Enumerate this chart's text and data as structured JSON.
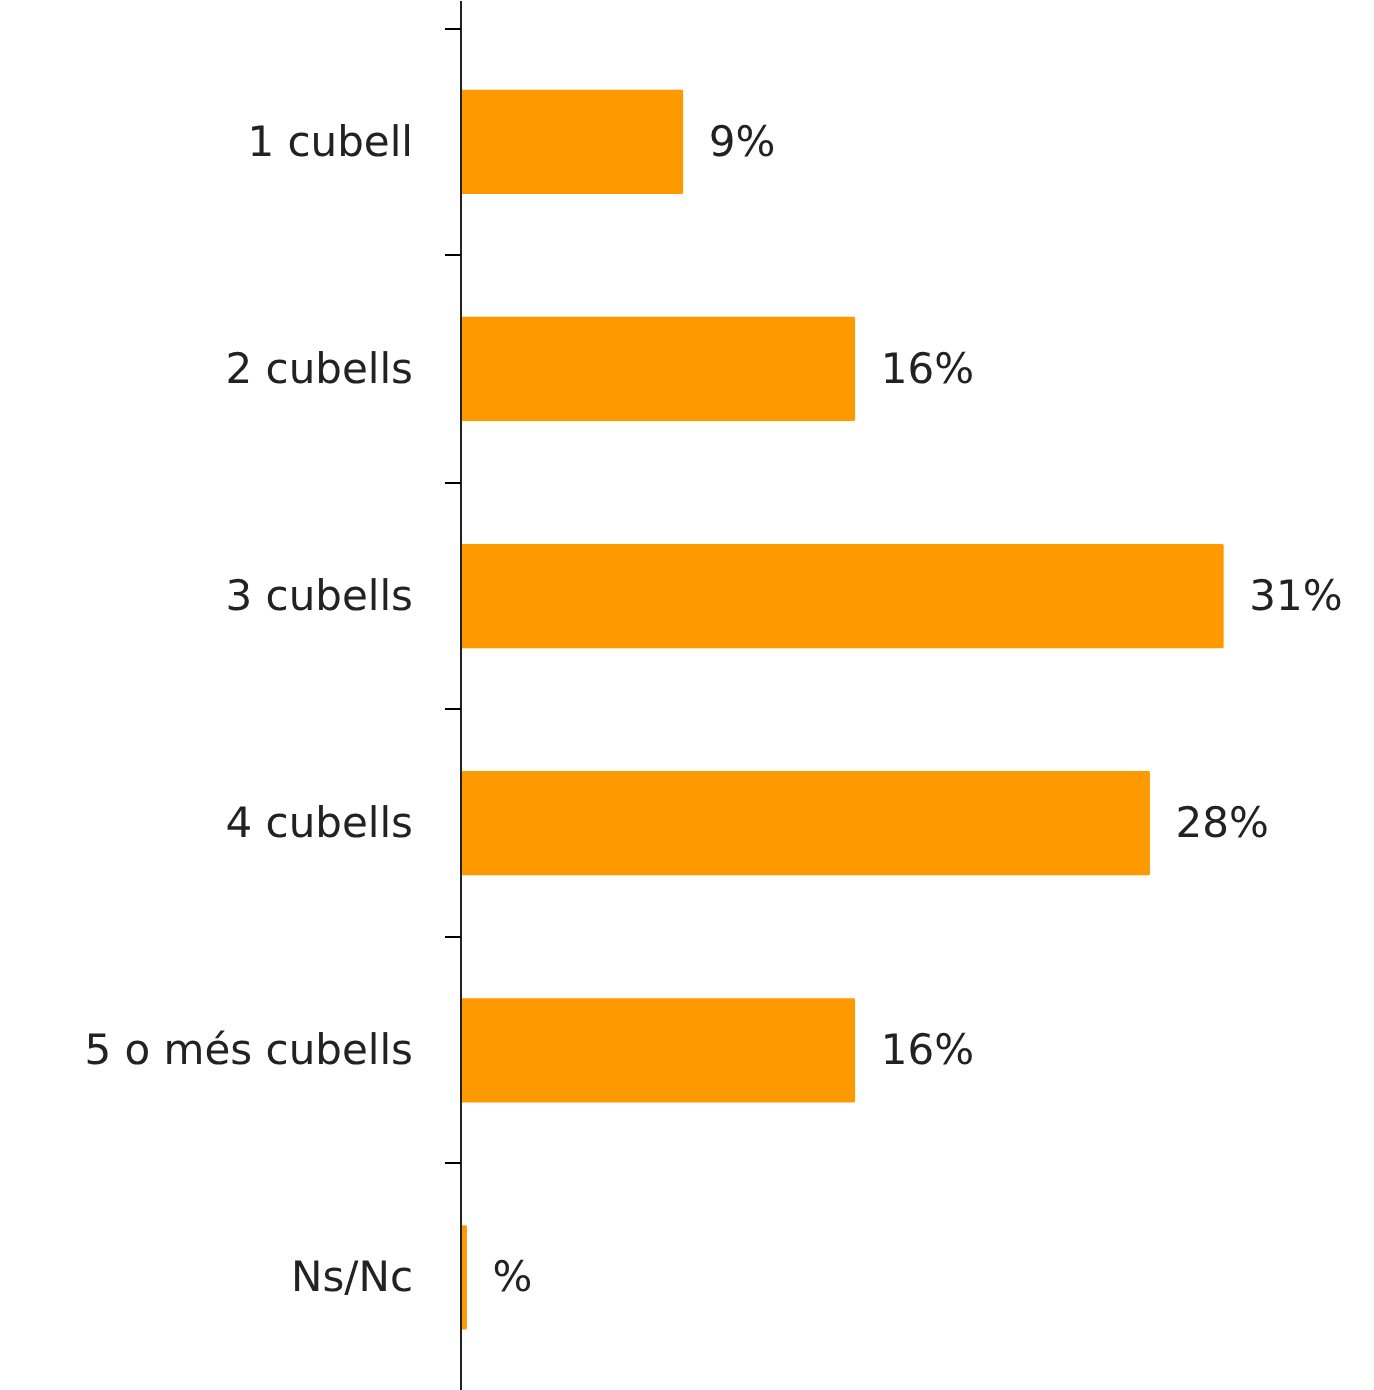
{
  "chart_data": {
    "type": "bar",
    "orientation": "horizontal",
    "categories": [
      "1 cubell",
      "2 cubells",
      "3 cubells",
      "4 cubells",
      "5 o més cubells",
      "Ns/Nc"
    ],
    "values": [
      9,
      16,
      31,
      28,
      16,
      0.2
    ],
    "value_labels": [
      "9%",
      "16%",
      "31%",
      "28%",
      "16%",
      "%"
    ],
    "color": "#ff9900",
    "grid": false
  }
}
